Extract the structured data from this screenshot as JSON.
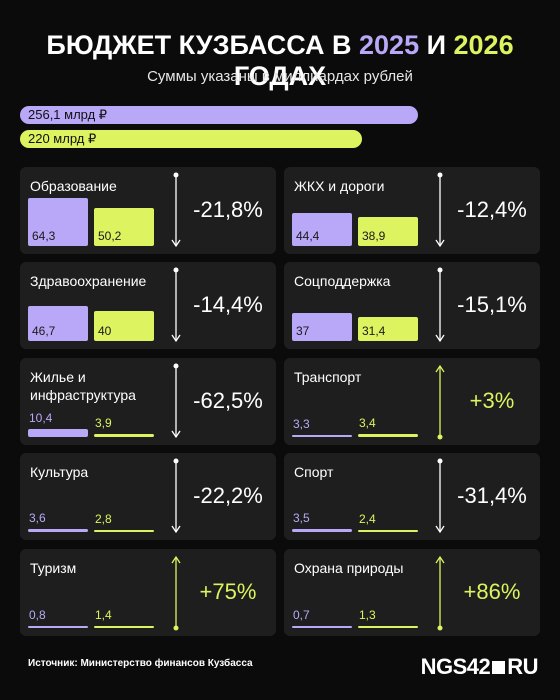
{
  "header": {
    "title_parts": [
      "БЮДЖЕТ КУЗБАССА В ",
      "2025",
      " И ",
      "2026",
      " ГОДАХ"
    ],
    "title_colors": [
      "#ffffff",
      "#b9a8f7",
      "#ffffff",
      "#ddf35f",
      "#ffffff"
    ],
    "subtitle": "Суммы указаны в миллиардах рублей"
  },
  "colors": [
    "#b9a8f7",
    "#ddf35f"
  ],
  "totals": {
    "type": "hbar",
    "values": [
      256.1,
      220
    ],
    "value_labels": [
      "256,1 млрд ₽",
      "220 млрд ₽"
    ]
  },
  "chart_data": [
    {
      "type": "bar",
      "title": "Образование",
      "values": [
        64.3,
        50.2
      ],
      "value_labels": [
        "64,3",
        "50,2"
      ],
      "change": "-21,8%"
    },
    {
      "type": "bar",
      "title": "ЖКХ и дороги",
      "values": [
        44.4,
        38.9
      ],
      "value_labels": [
        "44,4",
        "38,9"
      ],
      "change": "-12,4%"
    },
    {
      "type": "bar",
      "title": "Здравоохранение",
      "values": [
        46.7,
        40
      ],
      "value_labels": [
        "46,7",
        "40"
      ],
      "change": "-14,4%"
    },
    {
      "type": "bar",
      "title": "Соцподдержка",
      "values": [
        37,
        31.4
      ],
      "value_labels": [
        "37",
        "31,4"
      ],
      "change": "-15,1%"
    },
    {
      "type": "bar",
      "title": "Жилье и инфраструктура",
      "values": [
        10.4,
        3.9
      ],
      "value_labels": [
        "10,4",
        "3,9"
      ],
      "change": "-62,5%"
    },
    {
      "type": "bar",
      "title": "Транспорт",
      "values": [
        3.3,
        3.4
      ],
      "value_labels": [
        "3,3",
        "3,4"
      ],
      "change": "+3%"
    },
    {
      "type": "bar",
      "title": "Культура",
      "values": [
        3.6,
        2.8
      ],
      "value_labels": [
        "3,6",
        "2,8"
      ],
      "change": "-22,2%"
    },
    {
      "type": "bar",
      "title": "Спорт",
      "values": [
        3.5,
        2.4
      ],
      "value_labels": [
        "3,5",
        "2,4"
      ],
      "change": "-31,4%"
    },
    {
      "type": "bar",
      "title": "Туризм",
      "values": [
        0.8,
        1.4
      ],
      "value_labels": [
        "0,8",
        "1,4"
      ],
      "change": "+75%"
    },
    {
      "type": "bar",
      "title": "Охрана природы",
      "values": [
        0.7,
        1.3
      ],
      "value_labels": [
        "0,7",
        "1,3"
      ],
      "change": "+86%"
    }
  ],
  "source": "Источник: Министерство финансов Кузбасса",
  "logo": [
    "NGS42",
    "RU"
  ]
}
